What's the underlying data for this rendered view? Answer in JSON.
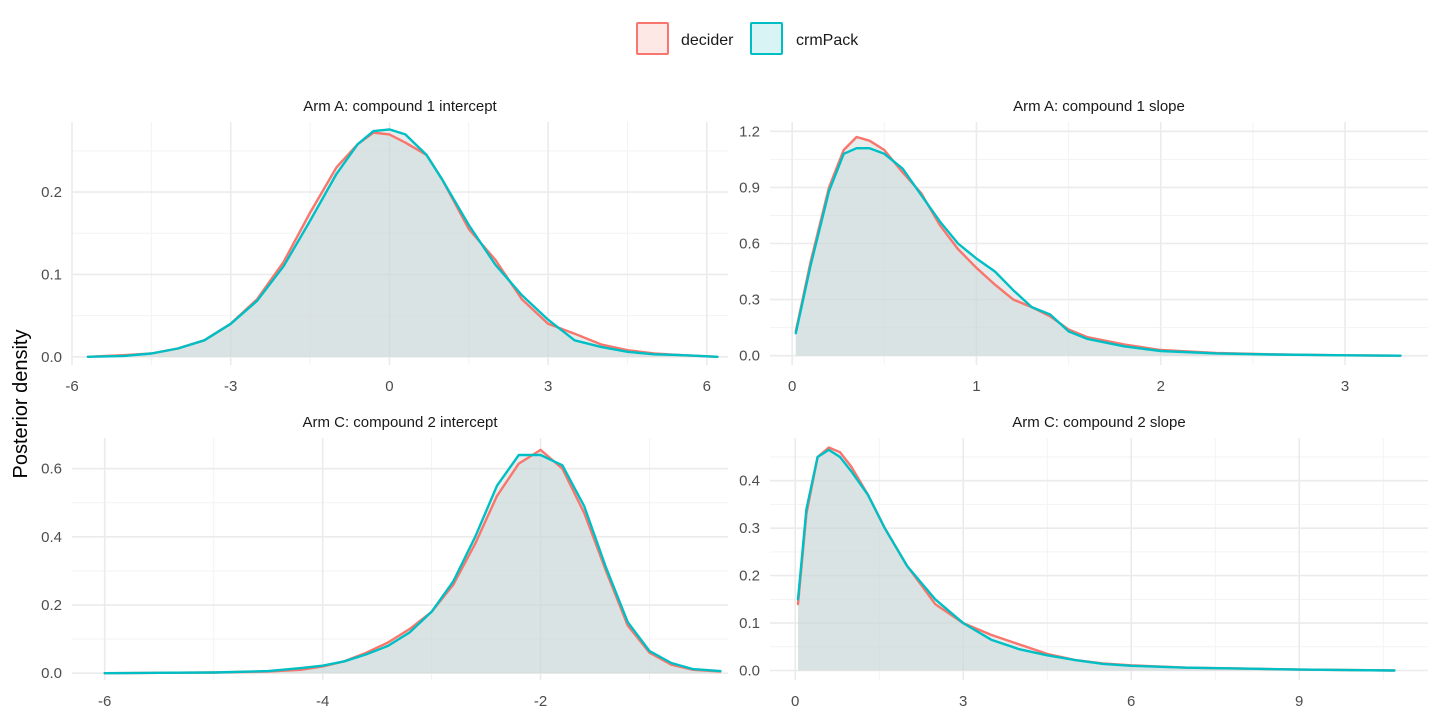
{
  "ylabel": "Posterior density",
  "legend": {
    "position": "top",
    "items": [
      {
        "label": "decider",
        "color": "#F8766D",
        "fill": "#FDE8E6"
      },
      {
        "label": "crmPack",
        "color": "#00BFC4",
        "fill": "#D8F4F5"
      }
    ]
  },
  "overlap_fill": "#D6E2E2",
  "chart_data": [
    {
      "type": "area",
      "title": "Arm A: compound 1 intercept",
      "xlim": [
        -6.0,
        6.4
      ],
      "ylim": [
        -0.01,
        0.285
      ],
      "xticks": [
        -6,
        -3,
        0,
        3,
        6
      ],
      "xtick_labels": [
        "-6",
        "-3",
        "0",
        "3",
        "6"
      ],
      "yticks": [
        0.0,
        0.1,
        0.2
      ],
      "ytick_labels": [
        "0.0",
        "0.1",
        "0.2"
      ],
      "grid": true,
      "series": [
        {
          "name": "decider",
          "x": [
            -5.7,
            -5.0,
            -4.5,
            -4.0,
            -3.5,
            -3.0,
            -2.5,
            -2.0,
            -1.5,
            -1.0,
            -0.6,
            -0.3,
            0.0,
            0.3,
            0.7,
            1.0,
            1.5,
            2.0,
            2.5,
            3.0,
            3.5,
            4.0,
            4.5,
            5.0,
            5.5,
            6.2
          ],
          "y": [
            0.0,
            0.002,
            0.004,
            0.01,
            0.02,
            0.04,
            0.07,
            0.115,
            0.175,
            0.23,
            0.258,
            0.272,
            0.27,
            0.26,
            0.245,
            0.215,
            0.155,
            0.118,
            0.07,
            0.04,
            0.028,
            0.015,
            0.008,
            0.004,
            0.002,
            0.0
          ]
        },
        {
          "name": "crmPack",
          "x": [
            -5.7,
            -5.0,
            -4.5,
            -4.0,
            -3.5,
            -3.0,
            -2.5,
            -2.0,
            -1.5,
            -1.0,
            -0.6,
            -0.3,
            0.0,
            0.3,
            0.7,
            1.0,
            1.5,
            2.0,
            2.5,
            3.0,
            3.5,
            4.0,
            4.5,
            5.0,
            5.5,
            6.2
          ],
          "y": [
            0.0,
            0.001,
            0.004,
            0.01,
            0.02,
            0.04,
            0.068,
            0.11,
            0.165,
            0.222,
            0.258,
            0.274,
            0.276,
            0.27,
            0.245,
            0.215,
            0.16,
            0.112,
            0.075,
            0.045,
            0.02,
            0.012,
            0.006,
            0.003,
            0.002,
            0.0
          ]
        }
      ]
    },
    {
      "type": "area",
      "title": "Arm A: compound 1 slope",
      "xlim": [
        -0.12,
        3.45
      ],
      "ylim": [
        -0.05,
        1.25
      ],
      "xticks": [
        0,
        1,
        2,
        3
      ],
      "xtick_labels": [
        "0",
        "1",
        "2",
        "3"
      ],
      "yticks": [
        0.0,
        0.3,
        0.6,
        0.9,
        1.2
      ],
      "ytick_labels": [
        "0.0",
        "0.3",
        "0.6",
        "0.9",
        "1.2"
      ],
      "grid": true,
      "series": [
        {
          "name": "decider",
          "x": [
            0.02,
            0.1,
            0.2,
            0.28,
            0.35,
            0.42,
            0.5,
            0.6,
            0.7,
            0.8,
            0.9,
            1.0,
            1.1,
            1.2,
            1.3,
            1.4,
            1.5,
            1.6,
            1.8,
            2.0,
            2.3,
            2.6,
            3.0,
            3.3
          ],
          "y": [
            0.13,
            0.5,
            0.9,
            1.1,
            1.17,
            1.15,
            1.1,
            0.98,
            0.87,
            0.7,
            0.57,
            0.47,
            0.38,
            0.3,
            0.26,
            0.21,
            0.14,
            0.1,
            0.06,
            0.03,
            0.015,
            0.007,
            0.002,
            0.0
          ]
        },
        {
          "name": "crmPack",
          "x": [
            0.02,
            0.1,
            0.2,
            0.28,
            0.35,
            0.42,
            0.5,
            0.6,
            0.7,
            0.8,
            0.9,
            1.0,
            1.1,
            1.2,
            1.3,
            1.4,
            1.5,
            1.6,
            1.8,
            2.0,
            2.3,
            2.6,
            3.0,
            3.3
          ],
          "y": [
            0.12,
            0.48,
            0.88,
            1.08,
            1.11,
            1.11,
            1.08,
            1.0,
            0.86,
            0.72,
            0.6,
            0.52,
            0.45,
            0.35,
            0.26,
            0.22,
            0.13,
            0.09,
            0.05,
            0.025,
            0.012,
            0.006,
            0.002,
            0.0
          ]
        }
      ]
    },
    {
      "type": "area",
      "title": "Arm C: compound 2 intercept",
      "xlim": [
        -6.3,
        -0.28
      ],
      "ylim": [
        -0.02,
        0.69
      ],
      "xticks": [
        -6,
        -4,
        -2
      ],
      "xtick_labels": [
        "-6",
        "-4",
        "-2"
      ],
      "yticks": [
        0.0,
        0.2,
        0.4,
        0.6
      ],
      "ytick_labels": [
        "0.0",
        "0.2",
        "0.4",
        "0.6"
      ],
      "grid": true,
      "series": [
        {
          "name": "decider",
          "x": [
            -6.0,
            -5.5,
            -5.0,
            -4.5,
            -4.2,
            -4.0,
            -3.8,
            -3.6,
            -3.4,
            -3.2,
            -3.0,
            -2.8,
            -2.6,
            -2.4,
            -2.2,
            -2.0,
            -1.8,
            -1.6,
            -1.4,
            -1.2,
            -1.0,
            -0.8,
            -0.6,
            -0.35
          ],
          "y": [
            0.0,
            0.001,
            0.002,
            0.005,
            0.01,
            0.02,
            0.035,
            0.06,
            0.09,
            0.13,
            0.18,
            0.26,
            0.38,
            0.52,
            0.615,
            0.655,
            0.6,
            0.47,
            0.3,
            0.14,
            0.06,
            0.025,
            0.01,
            0.005
          ]
        },
        {
          "name": "crmPack",
          "x": [
            -6.0,
            -5.5,
            -5.0,
            -4.5,
            -4.2,
            -4.0,
            -3.8,
            -3.6,
            -3.4,
            -3.2,
            -3.0,
            -2.8,
            -2.6,
            -2.4,
            -2.2,
            -2.0,
            -1.8,
            -1.6,
            -1.4,
            -1.2,
            -1.0,
            -0.8,
            -0.6,
            -0.35
          ],
          "y": [
            0.0,
            0.001,
            0.002,
            0.006,
            0.015,
            0.022,
            0.035,
            0.055,
            0.08,
            0.12,
            0.18,
            0.27,
            0.4,
            0.55,
            0.64,
            0.64,
            0.61,
            0.49,
            0.31,
            0.15,
            0.065,
            0.03,
            0.012,
            0.006
          ]
        }
      ]
    },
    {
      "type": "area",
      "title": "Arm C: compound 2 slope",
      "xlim": [
        -0.45,
        11.3
      ],
      "ylim": [
        -0.02,
        0.49
      ],
      "xticks": [
        0,
        3,
        6,
        9
      ],
      "xtick_labels": [
        "0",
        "3",
        "6",
        "9"
      ],
      "yticks": [
        0.0,
        0.1,
        0.2,
        0.3,
        0.4
      ],
      "ytick_labels": [
        "0.0",
        "0.1",
        "0.2",
        "0.3",
        "0.4"
      ],
      "grid": true,
      "series": [
        {
          "name": "decider",
          "x": [
            0.05,
            0.2,
            0.4,
            0.6,
            0.8,
            1.0,
            1.3,
            1.6,
            2.0,
            2.5,
            3.0,
            3.5,
            4.0,
            4.5,
            5.0,
            5.5,
            6.0,
            7.0,
            8.0,
            9.0,
            10.7
          ],
          "y": [
            0.14,
            0.33,
            0.45,
            0.47,
            0.46,
            0.43,
            0.37,
            0.3,
            0.22,
            0.14,
            0.1,
            0.075,
            0.055,
            0.035,
            0.022,
            0.015,
            0.011,
            0.006,
            0.004,
            0.002,
            0.0
          ]
        },
        {
          "name": "crmPack",
          "x": [
            0.05,
            0.2,
            0.4,
            0.6,
            0.8,
            1.0,
            1.3,
            1.6,
            2.0,
            2.5,
            3.0,
            3.5,
            4.0,
            4.5,
            5.0,
            5.5,
            6.0,
            7.0,
            8.0,
            9.0,
            10.7
          ],
          "y": [
            0.15,
            0.34,
            0.45,
            0.465,
            0.45,
            0.42,
            0.37,
            0.3,
            0.22,
            0.15,
            0.1,
            0.065,
            0.045,
            0.032,
            0.022,
            0.014,
            0.01,
            0.006,
            0.004,
            0.002,
            0.0
          ]
        }
      ]
    }
  ]
}
